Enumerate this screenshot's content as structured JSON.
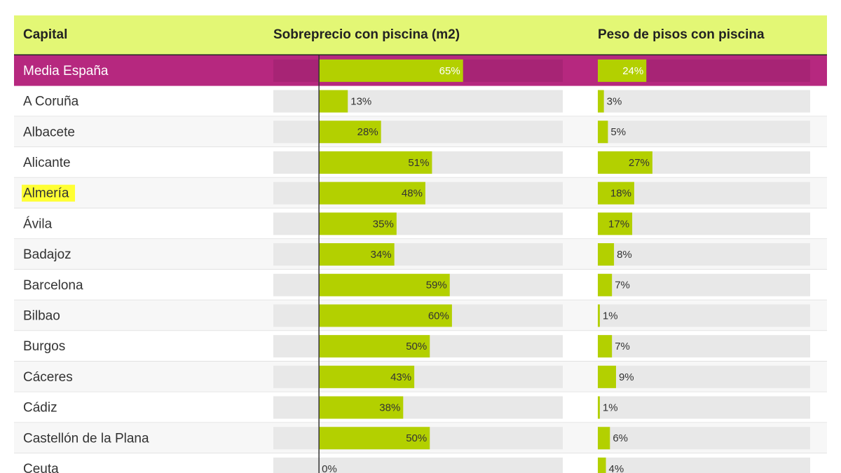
{
  "chart_data": {
    "type": "bar",
    "category_header": "Capital",
    "categories": [
      "Media España",
      "A Coruña",
      "Albacete",
      "Alicante",
      "Almería",
      "Ávila",
      "Badajoz",
      "Barcelona",
      "Bilbao",
      "Burgos",
      "Cáceres",
      "Cádiz",
      "Castellón de la Plana",
      "Ceuta"
    ],
    "highlighted_index": 4,
    "series": [
      {
        "name": "Sobreprecio con piscina (m2)",
        "color": "#b3d000",
        "xlim": [
          -20.6,
          110
        ],
        "values": [
          65,
          13,
          28,
          51,
          48,
          35,
          34,
          59,
          60,
          50,
          43,
          38,
          50,
          0
        ],
        "value_labels": [
          "65%",
          "13%",
          "28%",
          "51%",
          "48%",
          "35%",
          "34%",
          "59%",
          "60%",
          "50%",
          "43%",
          "38%",
          "50%",
          "0%"
        ]
      },
      {
        "name": "Peso de pisos con piscina",
        "color": "#b3d000",
        "xlim": [
          0,
          105
        ],
        "values": [
          24,
          3,
          5,
          27,
          18,
          17,
          8,
          7,
          1,
          7,
          9,
          1,
          6,
          4
        ],
        "value_labels": [
          "24%",
          "3%",
          "5%",
          "27%",
          "18%",
          "17%",
          "8%",
          "7%",
          "1%",
          "7%",
          "9%",
          "1%",
          "6%",
          "4%"
        ]
      }
    ]
  }
}
